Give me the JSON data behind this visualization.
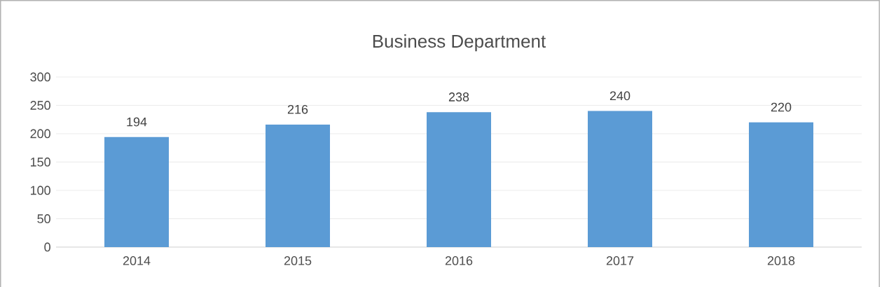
{
  "chart_data": {
    "type": "bar",
    "title": "Business Department",
    "categories": [
      "2014",
      "2015",
      "2016",
      "2017",
      "2018"
    ],
    "values": [
      194,
      216,
      238,
      240,
      220
    ],
    "color": "#5b9bd5",
    "ylim": [
      0,
      300
    ],
    "yticks": [
      0,
      50,
      100,
      150,
      200,
      250,
      300
    ],
    "grid": "y",
    "data_labels": true
  }
}
